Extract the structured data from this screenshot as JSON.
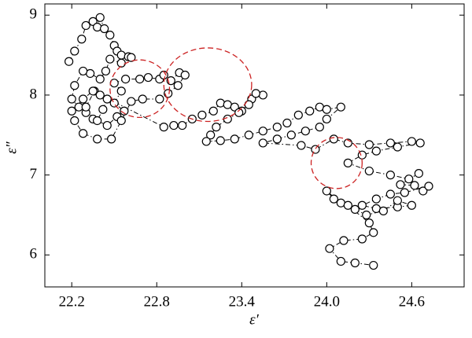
{
  "chart_data": {
    "type": "line",
    "xlabel": "ε′",
    "ylabel": "ε″",
    "xlim": [
      22.01,
      24.97
    ],
    "ylim": [
      5.6,
      9.14
    ],
    "xticks": [
      22.2,
      22.8,
      23.4,
      {
        "value": 24,
        "label": "24.0"
      },
      24.6
    ],
    "yticks": [
      6,
      7,
      8,
      9
    ],
    "series": [
      {
        "color": "#000000",
        "x": [
          22.18,
          22.22,
          22.27,
          22.3,
          22.35,
          22.38,
          22.4,
          22.43,
          22.47,
          22.5,
          22.52,
          22.55,
          22.6,
          22.62,
          22.55,
          22.47,
          22.44,
          22.4,
          22.33,
          22.28,
          22.22,
          22.2,
          22.25,
          22.3,
          22.35,
          22.3,
          22.36,
          22.4,
          22.45,
          22.42,
          22.38,
          22.45,
          22.52,
          22.57,
          22.5,
          22.55,
          22.5,
          22.58,
          22.68,
          22.74,
          22.82,
          22.85,
          22.9,
          22.96,
          23.0,
          22.95,
          22.88,
          22.82,
          22.7,
          22.62,
          22.55,
          22.48,
          22.38,
          22.28,
          22.22,
          22.2,
          22.28,
          22.35,
          22.85,
          22.92,
          22.98,
          23.05,
          23.12,
          23.2,
          23.25,
          23.3,
          23.35,
          23.4,
          23.47,
          23.55,
          23.5,
          23.45,
          23.38,
          23.3,
          23.22,
          23.18,
          23.15,
          23.25,
          23.35,
          23.45,
          23.55,
          23.65,
          23.72,
          23.8,
          23.88,
          23.95,
          24.0,
          24.1,
          24.0,
          23.95,
          23.85,
          23.75,
          23.65,
          23.55,
          23.82,
          23.92,
          24.05,
          24.15,
          24.3,
          24.45,
          24.6,
          24.66,
          24.5,
          24.35,
          24.25,
          24.15,
          24.3,
          24.45,
          24.58,
          24.65,
          24.52,
          24.62,
          24.68,
          24.72,
          24.55,
          24.45,
          24.35,
          24.25,
          24.35,
          24.5,
          24.6,
          24.5,
          24.4,
          24.28,
          24.2,
          24.1,
          24.0,
          24.05,
          24.15,
          24.3,
          24.33,
          24.25,
          24.12,
          24.02,
          24.1,
          24.2,
          24.33
        ],
        "values": [
          8.42,
          8.55,
          8.7,
          8.87,
          8.92,
          8.85,
          8.97,
          8.83,
          8.75,
          8.62,
          8.55,
          8.5,
          8.48,
          8.47,
          8.4,
          8.45,
          8.3,
          8.2,
          8.27,
          8.3,
          8.12,
          7.95,
          7.85,
          7.78,
          7.7,
          7.85,
          8.05,
          8.0,
          7.95,
          7.82,
          7.68,
          7.62,
          7.73,
          7.8,
          7.9,
          8.05,
          8.15,
          8.2,
          8.2,
          8.22,
          8.2,
          8.25,
          8.18,
          8.28,
          8.25,
          8.12,
          8.02,
          7.95,
          7.95,
          7.92,
          7.68,
          7.45,
          7.45,
          7.52,
          7.68,
          7.8,
          7.95,
          8.05,
          7.6,
          7.62,
          7.62,
          7.7,
          7.75,
          7.8,
          7.9,
          7.88,
          7.85,
          7.8,
          7.95,
          8.0,
          8.02,
          7.88,
          7.78,
          7.7,
          7.6,
          7.5,
          7.42,
          7.43,
          7.45,
          7.5,
          7.55,
          7.6,
          7.65,
          7.75,
          7.8,
          7.85,
          7.82,
          7.85,
          7.7,
          7.6,
          7.55,
          7.5,
          7.45,
          7.4,
          7.37,
          7.32,
          7.45,
          7.4,
          7.38,
          7.4,
          7.42,
          7.4,
          7.35,
          7.3,
          7.25,
          7.15,
          7.05,
          7.0,
          6.95,
          7.02,
          6.88,
          6.87,
          6.8,
          6.86,
          6.78,
          6.76,
          6.7,
          6.62,
          6.58,
          6.6,
          6.62,
          6.68,
          6.55,
          6.5,
          6.57,
          6.65,
          6.8,
          6.7,
          6.62,
          6.4,
          6.28,
          6.2,
          6.18,
          6.08,
          5.92,
          5.9,
          5.87
        ]
      }
    ],
    "highlights": {
      "color": "#cc2222",
      "circles": [
        {
          "cx": 22.68,
          "cy": 8.08,
          "rx": 0.21,
          "ry": 0.36
        },
        {
          "cx": 23.16,
          "cy": 8.13,
          "rx": 0.31,
          "ry": 0.46
        },
        {
          "cx": 24.07,
          "cy": 7.15,
          "rx": 0.18,
          "ry": 0.32
        }
      ]
    }
  }
}
